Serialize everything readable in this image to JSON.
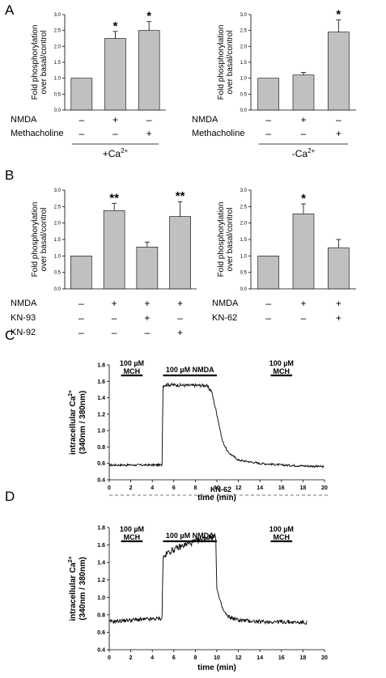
{
  "panel_letters": {
    "a": "A",
    "b": "B",
    "c": "C",
    "d": "D"
  },
  "ylabel_bar": [
    "Fold phosphorylation",
    "over basal/control"
  ],
  "ylabel_trace": [
    "intracellular Ca",
    "(340nm / 380nm)"
  ],
  "xlabel_trace": "time (min)",
  "annotations": {
    "mch_1": "100 µM",
    "mch_2": "MCH",
    "nmda": "100 µM NMDA",
    "kn62": "KN-62"
  },
  "conditions": {
    "plus_ca": "+Ca",
    "minus_ca": "-Ca",
    "superscript": "2+"
  },
  "chart_data": [
    {
      "id": "A1",
      "type": "bar",
      "ylabel": "Fold phosphorylation over basal/control",
      "ylim": [
        0,
        3.0
      ],
      "yticks": [
        "0.0",
        "0.5",
        "1.0",
        "1.5",
        "2.0",
        "2.5",
        "3.0"
      ],
      "values": [
        1.0,
        2.25,
        2.5
      ],
      "errors": [
        0,
        0.22,
        0.28
      ],
      "significance": [
        "",
        "*",
        "*"
      ],
      "treatment_rows": [
        {
          "label": "NMDA",
          "signs": [
            "–",
            "+",
            "–"
          ]
        },
        {
          "label": "Methacholine",
          "signs": [
            "–",
            "–",
            "+"
          ]
        }
      ],
      "condition": "+Ca2+"
    },
    {
      "id": "A2",
      "type": "bar",
      "ylabel": "Fold phosphorylation over basal/control",
      "ylim": [
        0,
        3.0
      ],
      "yticks": [
        "0.0",
        "0.5",
        "1.0",
        "1.5",
        "2.0",
        "2.5",
        "3.0"
      ],
      "values": [
        1.0,
        1.1,
        2.45
      ],
      "errors": [
        0,
        0.08,
        0.38
      ],
      "significance": [
        "",
        "",
        "*"
      ],
      "treatment_rows": [
        {
          "label": "NMDA",
          "signs": [
            "–",
            "+",
            "–"
          ]
        },
        {
          "label": "Methacholine",
          "signs": [
            "–",
            "–",
            "+"
          ]
        }
      ],
      "condition": "-Ca2+"
    },
    {
      "id": "B1",
      "type": "bar",
      "ylabel": "Fold phosphorylation over basal/control",
      "ylim": [
        0,
        3.0
      ],
      "yticks": [
        "0.0",
        "0.5",
        "1.0",
        "1.5",
        "2.0",
        "2.5",
        "3.0"
      ],
      "values": [
        1.0,
        2.38,
        1.27,
        2.2
      ],
      "errors": [
        0,
        0.22,
        0.15,
        0.45
      ],
      "significance": [
        "",
        "**",
        "",
        "**"
      ],
      "treatment_rows": [
        {
          "label": "NMDA",
          "signs": [
            "–",
            "+",
            "+",
            "+"
          ]
        },
        {
          "label": "KN-93",
          "signs": [
            "–",
            "–",
            "+",
            "–"
          ]
        },
        {
          "label": "KN-92",
          "signs": [
            "–",
            "–",
            "–",
            "+"
          ]
        }
      ]
    },
    {
      "id": "B2",
      "type": "bar",
      "ylabel": "Fold phosphorylation over basal/control",
      "ylim": [
        0,
        3.0
      ],
      "yticks": [
        "0.0",
        "0.5",
        "1.0",
        "1.5",
        "2.0",
        "2.5",
        "3.0"
      ],
      "values": [
        1.0,
        2.28,
        1.25
      ],
      "errors": [
        0,
        0.3,
        0.25
      ],
      "significance": [
        "",
        "*",
        ""
      ],
      "treatment_rows": [
        {
          "label": "NMDA",
          "signs": [
            "–",
            "+",
            "+"
          ]
        },
        {
          "label": "KN-62",
          "signs": [
            "–",
            "–",
            "+"
          ]
        }
      ]
    },
    {
      "id": "C",
      "type": "line",
      "xlabel": "time (min)",
      "ylabel": "intracellular Ca2+ (340nm / 380nm)",
      "xlim": [
        0,
        20
      ],
      "ylim": [
        0.4,
        1.8
      ],
      "xticks": [
        "0",
        "2",
        "4",
        "6",
        "8",
        "10",
        "12",
        "14",
        "16",
        "18",
        "20"
      ],
      "yticks": [
        "0.4",
        "0.6",
        "0.8",
        "1.0",
        "1.2",
        "1.4",
        "1.6",
        "1.8"
      ],
      "x": [
        0,
        2,
        4,
        4.9,
        5.0,
        5.5,
        7,
        9,
        9.5,
        10,
        10.5,
        11,
        12,
        14,
        16,
        18,
        20
      ],
      "y": [
        0.58,
        0.58,
        0.58,
        0.58,
        1.55,
        1.56,
        1.55,
        1.55,
        1.48,
        1.2,
        0.88,
        0.74,
        0.64,
        0.6,
        0.58,
        0.57,
        0.56
      ],
      "treatment_bars": [
        {
          "label": "100 µM MCH",
          "start": 1.1,
          "end": 3.1
        },
        {
          "label": "100 µM NMDA",
          "start": 5.0,
          "end": 10.0
        },
        {
          "label": "100 µM MCH",
          "start": 15.0,
          "end": 17.0
        }
      ]
    },
    {
      "id": "D",
      "type": "line",
      "xlabel": "time (min)",
      "ylabel": "intracellular Ca2+ (340nm / 380nm)",
      "xlim": [
        0,
        20
      ],
      "ylim": [
        0.4,
        1.8
      ],
      "xticks": [
        "0",
        "2",
        "4",
        "6",
        "8",
        "10",
        "12",
        "14",
        "16",
        "18",
        "20"
      ],
      "yticks": [
        "0.4",
        "0.6",
        "0.8",
        "1.0",
        "1.2",
        "1.4",
        "1.6",
        "1.8"
      ],
      "x": [
        0,
        2,
        4,
        4.9,
        5.0,
        5.5,
        7,
        9,
        9.9,
        10.0,
        10.3,
        10.6,
        11,
        12,
        14,
        16,
        18.4
      ],
      "y": [
        0.72,
        0.74,
        0.75,
        0.76,
        1.45,
        1.52,
        1.6,
        1.68,
        1.7,
        1.1,
        0.95,
        0.85,
        0.78,
        0.74,
        0.72,
        0.72,
        0.71
      ],
      "treatment_bars": [
        {
          "label": "100 µM MCH",
          "start": 1.1,
          "end": 3.1
        },
        {
          "label": "100 µM NMDA",
          "start": 5.0,
          "end": 10.0
        },
        {
          "label": "100 µM MCH",
          "start": 15.0,
          "end": 17.0
        }
      ],
      "background_treatment": "KN-62"
    }
  ]
}
